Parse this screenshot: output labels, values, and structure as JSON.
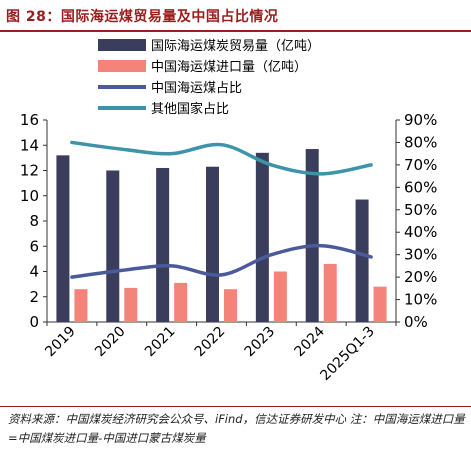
{
  "title": "图 28：国际海运煤贸易量及中国占比情况",
  "chart_data": {
    "type": "bar",
    "categories": [
      "2019",
      "2020",
      "2021",
      "2022",
      "2023",
      "2024",
      "2025Q1-3"
    ],
    "series": [
      {
        "name": "国际海运煤炭贸易量（亿吨）",
        "type": "bar",
        "axis": "left",
        "color": "#3b3d5c",
        "values": [
          13.2,
          12.0,
          12.2,
          12.3,
          13.4,
          13.7,
          9.7
        ]
      },
      {
        "name": "中国海运煤进口量（亿吨）",
        "type": "bar",
        "axis": "left",
        "color": "#f4837a",
        "values": [
          2.6,
          2.7,
          3.1,
          2.6,
          4.0,
          4.6,
          2.8
        ]
      },
      {
        "name": "中国海运煤占比",
        "type": "line",
        "axis": "right",
        "color": "#4a5a9b",
        "values": [
          0.2,
          0.23,
          0.25,
          0.21,
          0.3,
          0.34,
          0.29
        ]
      },
      {
        "name": "其他国家占比",
        "type": "line",
        "axis": "right",
        "color": "#3d93a8",
        "values": [
          0.8,
          0.77,
          0.75,
          0.79,
          0.7,
          0.66,
          0.7
        ]
      }
    ],
    "y_left": {
      "min": 0,
      "max": 16,
      "ticks": [
        "0",
        "2",
        "4",
        "6",
        "8",
        "10",
        "12",
        "14",
        "16"
      ]
    },
    "y_right": {
      "min": 0,
      "max": 0.9,
      "ticks": [
        "0%",
        "10%",
        "20%",
        "30%",
        "40%",
        "50%",
        "60%",
        "70%",
        "80%",
        "90%"
      ]
    },
    "legend_position": "top-center",
    "grid": false
  },
  "source_note": "资料来源：中国煤炭经济研究会公众号、iFind，信达证券研发中心 注：中国海运煤进口量=中国煤炭进口量-中国进口蒙古煤炭量"
}
